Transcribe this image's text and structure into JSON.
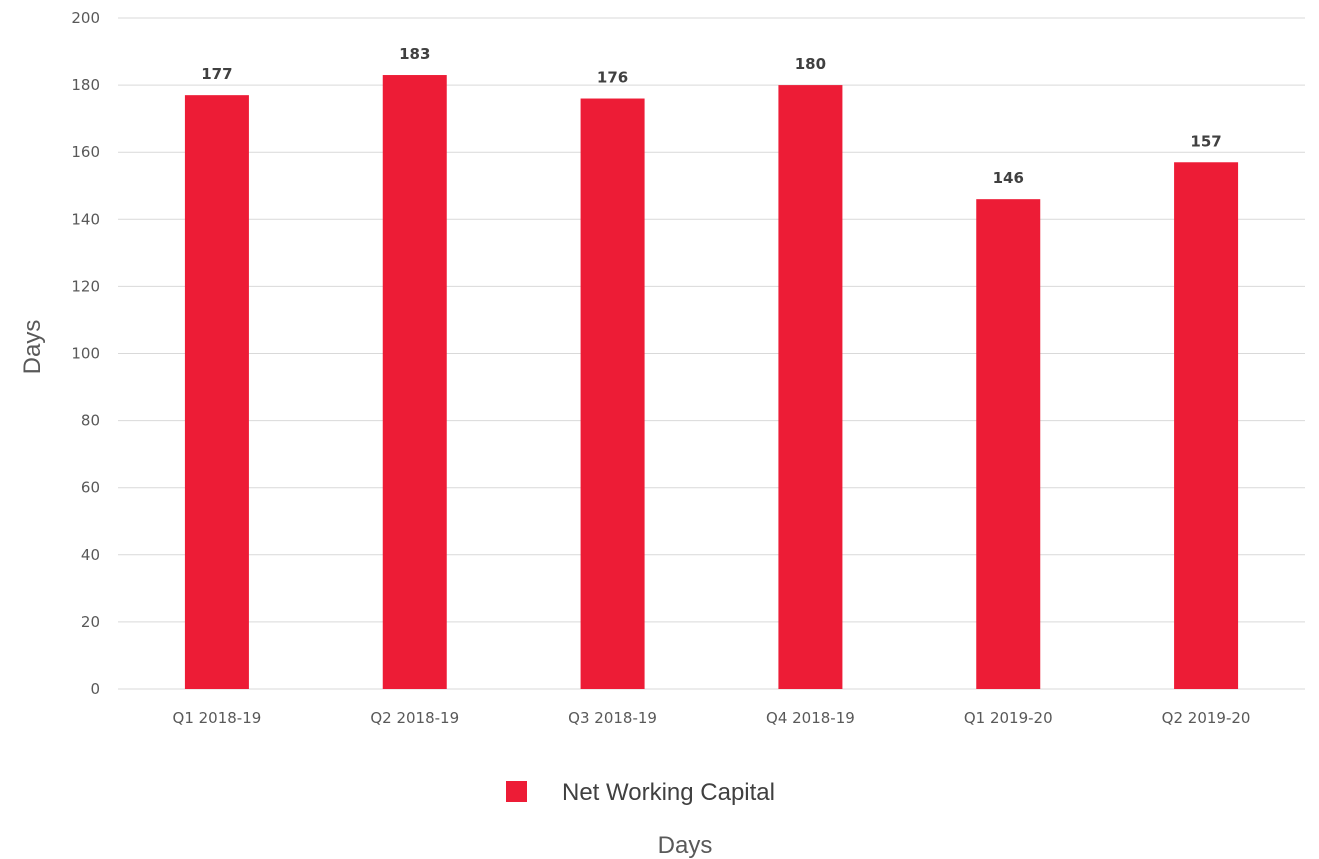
{
  "chart_data": {
    "type": "bar",
    "categories": [
      "Q1 2018-19",
      "Q2 2018-19",
      "Q3 2018-19",
      "Q4 2018-19",
      "Q1 2019-20",
      "Q2 2019-20"
    ],
    "series": [
      {
        "name": "Net Working Capital",
        "values": [
          177,
          183,
          176,
          180,
          146,
          157
        ],
        "color": "#ed1c36"
      }
    ],
    "title": "",
    "xlabel": "Days",
    "ylabel": "Days",
    "ylim": [
      0,
      200
    ],
    "yticks": [
      0,
      20,
      40,
      60,
      80,
      100,
      120,
      140,
      160,
      180,
      200
    ],
    "grid": true,
    "legend_position": "bottom",
    "data_labels": true
  }
}
